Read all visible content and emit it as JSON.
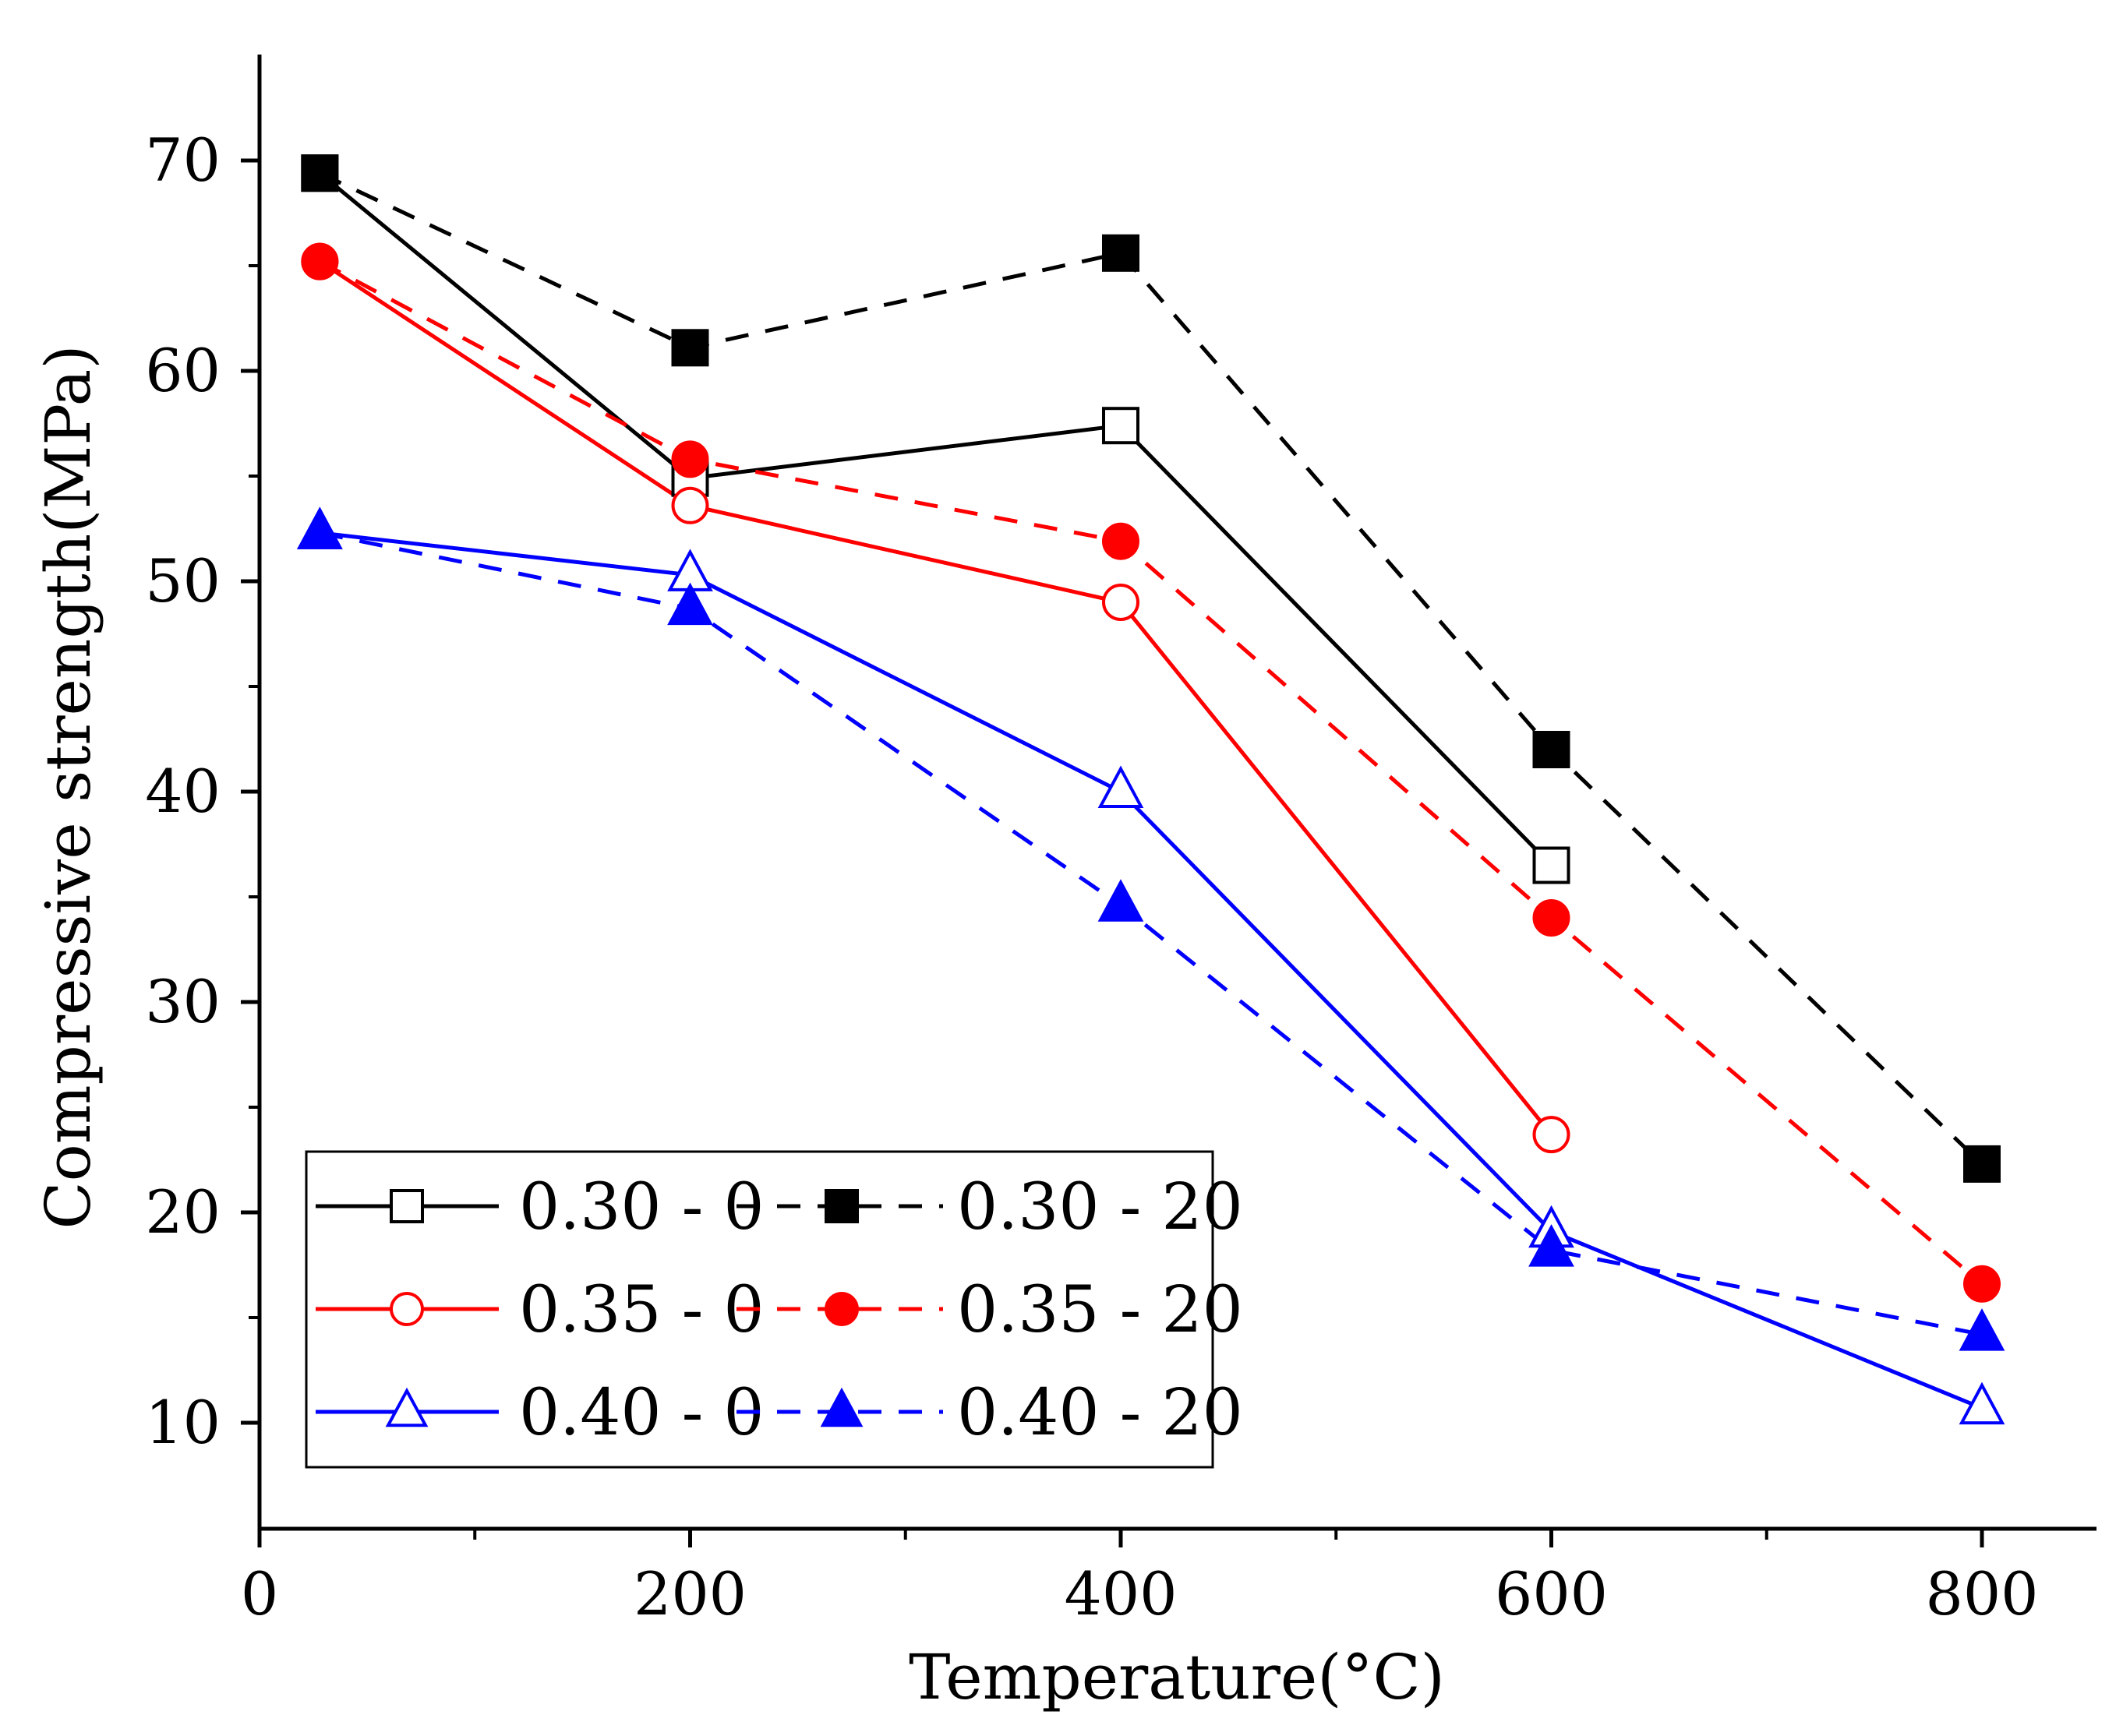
{
  "chart_data": {
    "type": "line",
    "title": "",
    "xlabel": "Temperature(°C)",
    "ylabel": "Compressive strength(MPa)",
    "xlim": [
      0,
      850
    ],
    "ylim": [
      5,
      75
    ],
    "x_ticks": [
      0,
      200,
      400,
      600,
      800
    ],
    "x_minor_ticks": [
      100,
      300,
      500,
      700
    ],
    "y_ticks": [
      10,
      20,
      30,
      40,
      50,
      60,
      70
    ],
    "y_minor_ticks": [
      15,
      25,
      35,
      45,
      55,
      65
    ],
    "grid": false,
    "legend_position": "bottom-left",
    "series": [
      {
        "name": "0.30 - 0",
        "color": "#000000",
        "dash": "solid",
        "marker": "square",
        "filled": false,
        "x": [
          28,
          200,
          400,
          600
        ],
        "y": [
          69.4,
          54.9,
          57.4,
          36.5
        ]
      },
      {
        "name": "0.30 - 20",
        "color": "#000000",
        "dash": "dashed",
        "marker": "square",
        "filled": true,
        "x": [
          28,
          200,
          400,
          600,
          800
        ],
        "y": [
          69.4,
          61.1,
          65.6,
          42.0,
          22.3
        ]
      },
      {
        "name": "0.35 - 0",
        "color": "#ff0000",
        "dash": "solid",
        "marker": "circle",
        "filled": false,
        "x": [
          28,
          200,
          400,
          600
        ],
        "y": [
          65.2,
          53.6,
          49.0,
          23.7
        ]
      },
      {
        "name": "0.35 - 20",
        "color": "#ff0000",
        "dash": "dashed",
        "marker": "circle",
        "filled": true,
        "x": [
          28,
          200,
          400,
          600,
          800
        ],
        "y": [
          65.2,
          55.8,
          51.9,
          34.0,
          16.6
        ]
      },
      {
        "name": "0.40 - 0",
        "color": "#0000ff",
        "dash": "solid",
        "marker": "triangle",
        "filled": false,
        "x": [
          28,
          200,
          400,
          600,
          800
        ],
        "y": [
          52.3,
          50.3,
          40.0,
          19.1,
          10.7
        ]
      },
      {
        "name": "0.40 - 20",
        "color": "#0000ff",
        "dash": "dashed",
        "marker": "triangle",
        "filled": true,
        "x": [
          28,
          200,
          400,
          600,
          800
        ],
        "y": [
          52.3,
          48.7,
          34.6,
          18.2,
          14.2
        ]
      }
    ]
  }
}
